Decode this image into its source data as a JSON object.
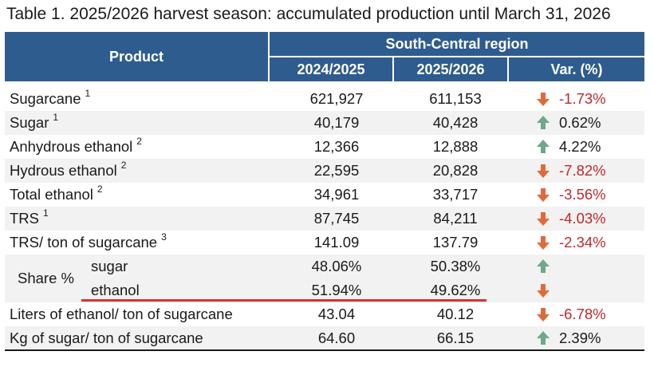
{
  "title": "Table 1. 2025/2026 harvest season: accumulated production until March 31, 2026",
  "header": {
    "product": "Product",
    "region": "South-Central region",
    "col1": "2024/2025",
    "col2": "2025/2026",
    "col3": "Var. (%)"
  },
  "rows": [
    {
      "product": "Sugarcane",
      "note": "1",
      "v1": "621,927",
      "v2": "611,153",
      "dir": "down",
      "var": "-1.73%"
    },
    {
      "product": "Sugar",
      "note": "1",
      "v1": "40,179",
      "v2": "40,428",
      "dir": "up",
      "var": "0.62%"
    },
    {
      "product": "Anhydrous ethanol",
      "note": "2",
      "v1": "12,366",
      "v2": "12,888",
      "dir": "up",
      "var": "4.22%"
    },
    {
      "product": "Hydrous ethanol",
      "note": "2",
      "v1": "22,595",
      "v2": "20,828",
      "dir": "down",
      "var": "-7.82%"
    },
    {
      "product": "Total ethanol",
      "note": "2",
      "v1": "34,961",
      "v2": "33,717",
      "dir": "down",
      "var": "-3.56%"
    },
    {
      "product": "TRS",
      "note": "1",
      "v1": "87,745",
      "v2": "84,211",
      "dir": "down",
      "var": "-4.03%"
    },
    {
      "product": "TRS/ ton of sugarcane",
      "note": "3",
      "v1": "141.09",
      "v2": "137.79",
      "dir": "down",
      "var": "-2.34%"
    }
  ],
  "share": {
    "label": "Share %",
    "items": [
      {
        "product": "sugar",
        "v1": "48.06%",
        "v2": "50.38%",
        "dir": "up"
      },
      {
        "product": "ethanol",
        "v1": "51.94%",
        "v2": "49.62%",
        "dir": "down"
      }
    ]
  },
  "rows_after": [
    {
      "product": "Liters of ethanol/ ton of sugarcane",
      "v1": "43.04",
      "v2": "40.12",
      "dir": "down",
      "var": "-6.78%"
    },
    {
      "product": "Kg of sugar/ ton of sugarcane",
      "v1": "64.60",
      "v2": "66.15",
      "dir": "up",
      "var": "2.39%"
    }
  ],
  "colors": {
    "header_bg": "#2f5c8f",
    "row_shade": "#f2f2f2",
    "negative": "#c0282c",
    "arrow_down": "#e06a3a",
    "arrow_up": "#6fa88a",
    "highlight_line": "#e0302c"
  },
  "icons": {
    "down": "arrow-down-icon",
    "up": "arrow-up-icon"
  }
}
